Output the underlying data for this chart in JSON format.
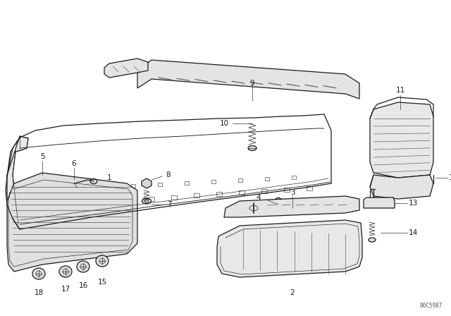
{
  "bg_color": "#ffffff",
  "diagram_code": "00C5987",
  "fig_width": 6.4,
  "fig_height": 4.48,
  "dpi": 100,
  "line_color": "#1a1a1a",
  "line_width": 0.9,
  "thin_line": 0.45
}
